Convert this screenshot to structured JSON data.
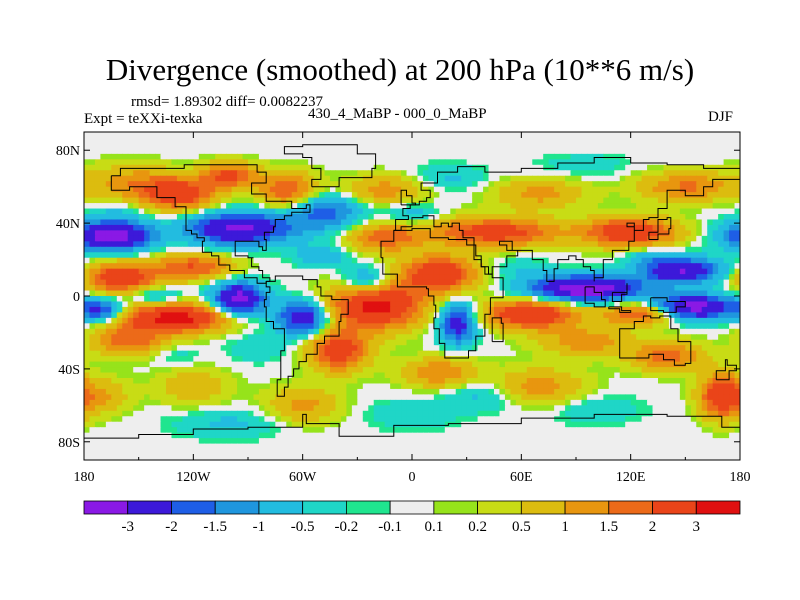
{
  "chart_data": {
    "type": "heatmap",
    "title": "Divergence (smoothed) at 200 hPa (10**6 m/s)",
    "stats": "rmsd= 1.89302 diff= 0.0082237",
    "experiment": "Expt = teXXi-texka",
    "difference": "430_4_MaBP - 000_0_MaBP",
    "season": "DJF",
    "xlabel": "",
    "ylabel": "",
    "xlim": [
      -180,
      180
    ],
    "ylim": [
      -90,
      90
    ],
    "x_ticks": [
      {
        "value": -180,
        "label": "180"
      },
      {
        "value": -120,
        "label": "120W"
      },
      {
        "value": -60,
        "label": "60W"
      },
      {
        "value": 0,
        "label": "0"
      },
      {
        "value": 60,
        "label": "60E"
      },
      {
        "value": 120,
        "label": "120E"
      },
      {
        "value": 180,
        "label": "180"
      }
    ],
    "y_ticks": [
      {
        "value": 80,
        "label": "80N"
      },
      {
        "value": 40,
        "label": "40N"
      },
      {
        "value": 0,
        "label": "0"
      },
      {
        "value": -40,
        "label": "40S"
      },
      {
        "value": -80,
        "label": "80S"
      }
    ],
    "colorbar": {
      "colors": [
        "#8a19e5",
        "#3c19d9",
        "#1e5ee6",
        "#1f96de",
        "#22bce0",
        "#1fd6c7",
        "#20e58f",
        "#eeeeee",
        "#96e31b",
        "#c8dc15",
        "#dcbc0f",
        "#e8960f",
        "#ec6a19",
        "#ea4419",
        "#e01010"
      ],
      "labels": [
        "-3",
        "-2",
        "-1.5",
        "-1",
        "-0.5",
        "-0.2",
        "-0.1",
        "0.1",
        "0.2",
        "0.5",
        "1",
        "1.5",
        "2",
        "3"
      ]
    },
    "field_centers": [
      {
        "lon": -165,
        "lat": 33,
        "value": -3.6,
        "r_lon": 22,
        "r_lat": 8
      },
      {
        "lon": -95,
        "lat": 37,
        "value": -3.2,
        "r_lon": 28,
        "r_lat": 9
      },
      {
        "lon": -48,
        "lat": 46,
        "value": -1.8,
        "r_lon": 20,
        "r_lat": 10
      },
      {
        "lon": -25,
        "lat": 8,
        "value": -1.6,
        "r_lon": 14,
        "r_lat": 8
      },
      {
        "lon": -128,
        "lat": 56,
        "value": 2.6,
        "r_lon": 20,
        "r_lat": 9
      },
      {
        "lon": -68,
        "lat": 58,
        "value": 2.0,
        "r_lon": 16,
        "r_lat": 10
      },
      {
        "lon": -155,
        "lat": 62,
        "value": 1.2,
        "r_lon": 25,
        "r_lat": 10
      },
      {
        "lon": -100,
        "lat": 66,
        "value": 2.2,
        "r_lon": 15,
        "r_lat": 7
      },
      {
        "lon": -15,
        "lat": 58,
        "value": 1.3,
        "r_lon": 22,
        "r_lat": 8
      },
      {
        "lon": 70,
        "lat": 56,
        "value": 1.2,
        "r_lon": 25,
        "r_lat": 8
      },
      {
        "lon": 150,
        "lat": 60,
        "value": 1.6,
        "r_lon": 25,
        "r_lat": 8
      },
      {
        "lon": 120,
        "lat": 35,
        "value": 2.8,
        "r_lon": 25,
        "r_lat": 8
      },
      {
        "lon": 45,
        "lat": 35,
        "value": 2.5,
        "r_lon": 35,
        "r_lat": 8
      },
      {
        "lon": -15,
        "lat": 32,
        "value": 1.8,
        "r_lon": 20,
        "r_lat": 8
      },
      {
        "lon": -160,
        "lat": 10,
        "value": 2.8,
        "r_lon": 20,
        "r_lat": 8
      },
      {
        "lon": -120,
        "lat": 16,
        "value": 2.0,
        "r_lon": 22,
        "r_lat": 7
      },
      {
        "lon": -95,
        "lat": -2,
        "value": -3.6,
        "r_lon": 14,
        "r_lat": 9
      },
      {
        "lon": -60,
        "lat": -12,
        "value": -2.8,
        "r_lon": 14,
        "r_lat": 9
      },
      {
        "lon": 25,
        "lat": -15,
        "value": -2.6,
        "r_lon": 10,
        "r_lat": 11
      },
      {
        "lon": -20,
        "lat": -5,
        "value": 3.4,
        "r_lon": 25,
        "r_lat": 13
      },
      {
        "lon": 15,
        "lat": 12,
        "value": 2.8,
        "r_lon": 20,
        "r_lat": 10
      },
      {
        "lon": -130,
        "lat": -12,
        "value": 3.4,
        "r_lon": 30,
        "r_lat": 8
      },
      {
        "lon": -170,
        "lat": -8,
        "value": -2.2,
        "r_lon": 12,
        "r_lat": 6
      },
      {
        "lon": -155,
        "lat": -25,
        "value": 1.8,
        "r_lon": 20,
        "r_lat": 8
      },
      {
        "lon": -40,
        "lat": -30,
        "value": 2.6,
        "r_lon": 16,
        "r_lat": 11
      },
      {
        "lon": -85,
        "lat": -28,
        "value": -0.5,
        "r_lon": 16,
        "r_lat": 8
      },
      {
        "lon": 60,
        "lat": 15,
        "value": -0.5,
        "r_lon": 15,
        "r_lat": 6
      },
      {
        "lon": 95,
        "lat": 4,
        "value": -3.8,
        "r_lon": 30,
        "r_lat": 7
      },
      {
        "lon": 148,
        "lat": 14,
        "value": -3.0,
        "r_lon": 22,
        "r_lat": 7
      },
      {
        "lon": 155,
        "lat": -6,
        "value": -3.4,
        "r_lon": 22,
        "r_lat": 7
      },
      {
        "lon": 125,
        "lat": -10,
        "value": 2.2,
        "r_lon": 20,
        "r_lat": 6
      },
      {
        "lon": 65,
        "lat": -10,
        "value": 3.0,
        "r_lon": 25,
        "r_lat": 8
      },
      {
        "lon": 95,
        "lat": -25,
        "value": 1.3,
        "r_lon": 25,
        "r_lat": 8
      },
      {
        "lon": 140,
        "lat": -33,
        "value": 1.8,
        "r_lon": 20,
        "r_lat": 8
      },
      {
        "lon": 170,
        "lat": -55,
        "value": 2.8,
        "r_lon": 12,
        "r_lat": 12
      },
      {
        "lon": 15,
        "lat": -42,
        "value": 1.5,
        "r_lon": 20,
        "r_lat": 8
      },
      {
        "lon": 70,
        "lat": -50,
        "value": 1.3,
        "r_lon": 25,
        "r_lat": 10
      },
      {
        "lon": -170,
        "lat": -55,
        "value": 1.0,
        "r_lon": 15,
        "r_lat": 10
      },
      {
        "lon": -120,
        "lat": -50,
        "value": 0.9,
        "r_lon": 20,
        "r_lat": 10
      },
      {
        "lon": -60,
        "lat": -60,
        "value": 1.2,
        "r_lon": 20,
        "r_lat": 10
      },
      {
        "lon": -100,
        "lat": -70,
        "value": -0.6,
        "r_lon": 30,
        "r_lat": 8
      },
      {
        "lon": -130,
        "lat": -32,
        "value": -0.4,
        "r_lon": 14,
        "r_lat": 6
      },
      {
        "lon": -50,
        "lat": 22,
        "value": -1.0,
        "r_lon": 14,
        "r_lat": 6
      },
      {
        "lon": 40,
        "lat": -55,
        "value": -0.7,
        "r_lon": 20,
        "r_lat": 8
      },
      {
        "lon": 100,
        "lat": -62,
        "value": -0.5,
        "r_lon": 25,
        "r_lat": 8
      },
      {
        "lon": 0,
        "lat": -65,
        "value": -0.5,
        "r_lon": 25,
        "r_lat": 8
      },
      {
        "lon": -160,
        "lat": 46,
        "value": -0.5,
        "r_lon": 15,
        "r_lat": 6
      },
      {
        "lon": 20,
        "lat": 65,
        "value": -0.6,
        "r_lon": 20,
        "r_lat": 7
      },
      {
        "lon": 95,
        "lat": 72,
        "value": -0.4,
        "r_lon": 25,
        "r_lat": 6
      },
      {
        "lon": 130,
        "lat": 22,
        "value": -0.7,
        "r_lon": 12,
        "r_lat": 5
      },
      {
        "lon": -140,
        "lat": 0,
        "value": -1.0,
        "r_lon": 15,
        "r_lat": 5
      },
      {
        "lon": 0,
        "lat": 45,
        "value": -0.8,
        "r_lon": 15,
        "r_lat": 6
      }
    ]
  }
}
